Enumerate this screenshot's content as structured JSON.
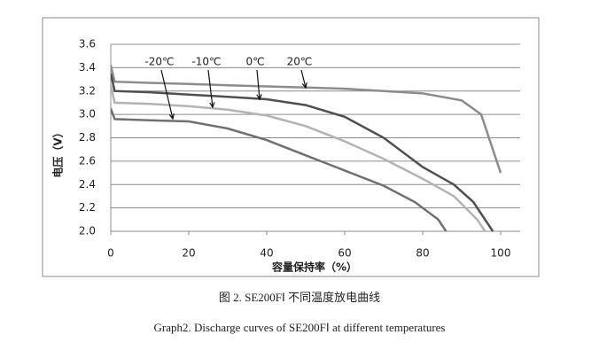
{
  "chart_data": {
    "type": "line",
    "caption_cn": "图 2. SE200FⅠ  不同温度放电曲线",
    "caption_en": "Graph2. Discharge curves of SE200FⅠ   at different temperatures",
    "x_label": "容量保持率（%）",
    "y_label": "电压（V）",
    "xlim": [
      0,
      105
    ],
    "xticks": [
      0,
      20,
      40,
      60,
      80,
      100
    ],
    "ylim": [
      2,
      3.6
    ],
    "yticks": [
      {
        "value": 2,
        "label": "2.0"
      },
      2.2,
      2.4,
      2.6,
      2.8,
      {
        "value": 3,
        "label": "3.0"
      },
      3.2,
      3.4,
      3.6
    ],
    "grid": true,
    "series": [
      {
        "name": "20℃",
        "color": "#8c8c8c",
        "x": [
          0,
          1,
          10,
          20,
          30,
          40,
          50,
          60,
          70,
          80,
          90,
          95,
          98,
          100
        ],
        "values": [
          3.42,
          3.28,
          3.27,
          3.26,
          3.25,
          3.24,
          3.23,
          3.22,
          3.2,
          3.18,
          3.12,
          3.0,
          2.7,
          2.5
        ]
      },
      {
        "name": "0℃",
        "color": "#4f4f4f",
        "x": [
          0,
          1,
          10,
          20,
          30,
          40,
          50,
          60,
          70,
          80,
          88,
          93,
          98
        ],
        "values": [
          3.35,
          3.2,
          3.19,
          3.17,
          3.15,
          3.13,
          3.08,
          2.98,
          2.8,
          2.55,
          2.4,
          2.25,
          2.0
        ]
      },
      {
        "name": "-10℃",
        "color": "#b3b3b3",
        "x": [
          0,
          1,
          10,
          20,
          30,
          40,
          50,
          60,
          70,
          80,
          88,
          94,
          96
        ],
        "values": [
          3.25,
          3.1,
          3.09,
          3.07,
          3.04,
          2.99,
          2.9,
          2.77,
          2.62,
          2.45,
          2.3,
          2.1,
          2.0
        ]
      },
      {
        "name": "-20℃",
        "color": "#707070",
        "x": [
          0,
          1,
          10,
          20,
          30,
          40,
          50,
          60,
          70,
          78,
          84,
          86
        ],
        "values": [
          3.05,
          2.96,
          2.95,
          2.94,
          2.88,
          2.78,
          2.65,
          2.52,
          2.39,
          2.25,
          2.1,
          2.0
        ]
      }
    ]
  }
}
